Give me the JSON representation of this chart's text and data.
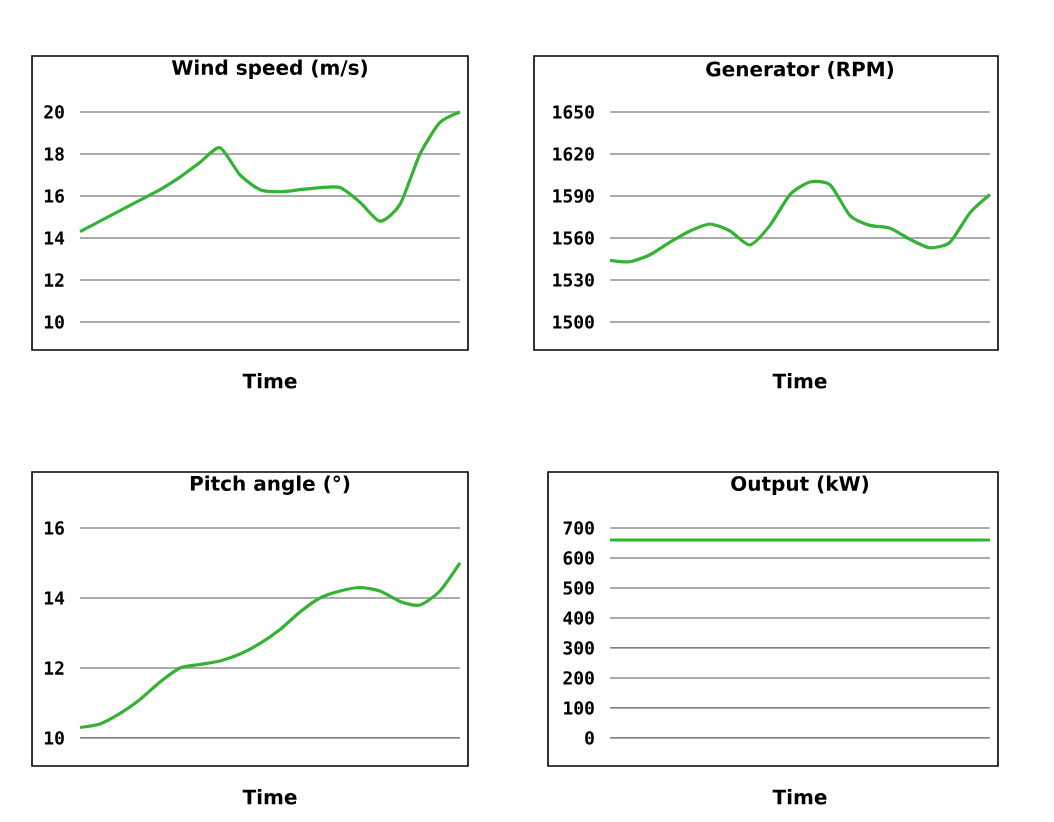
{
  "chart_data": [
    {
      "type": "line",
      "title": "Wind speed (m/s)",
      "xlabel": "Time",
      "categories": [
        null,
        null,
        null,
        null,
        null,
        null,
        null,
        null,
        null,
        null,
        null,
        null,
        null,
        null,
        null,
        null,
        null,
        null,
        null,
        null
      ],
      "values": [
        14.3,
        14.8,
        15.3,
        15.8,
        16.3,
        16.9,
        17.6,
        18.3,
        17.0,
        16.3,
        16.2,
        16.3,
        16.4,
        16.4,
        15.7,
        14.8,
        15.6,
        18.0,
        19.5,
        20.0
      ],
      "color": "#33b233",
      "ylim": [
        10,
        20
      ],
      "yticks": [
        10,
        12,
        14,
        16,
        18,
        20
      ],
      "grid": "y"
    },
    {
      "type": "line",
      "title": "Generator (RPM)",
      "xlabel": "Time",
      "categories": [
        null,
        null,
        null,
        null,
        null,
        null,
        null,
        null,
        null,
        null,
        null,
        null,
        null,
        null,
        null,
        null,
        null,
        null,
        null,
        null
      ],
      "values": [
        1544,
        1543,
        1548,
        1557,
        1565,
        1570,
        1565,
        1555,
        1569,
        1591,
        1600,
        1598,
        1576,
        1569,
        1567,
        1559,
        1553,
        1557,
        1578,
        1591
      ],
      "color": "#33b233",
      "ylim": [
        1500,
        1650
      ],
      "yticks": [
        1500,
        1530,
        1560,
        1590,
        1620,
        1650
      ],
      "grid": "y"
    },
    {
      "type": "line",
      "title": "Pitch angle (°)",
      "xlabel": "Time",
      "categories": [
        null,
        null,
        null,
        null,
        null,
        null,
        null,
        null,
        null,
        null,
        null,
        null,
        null,
        null,
        null,
        null,
        null,
        null,
        null,
        null
      ],
      "values": [
        10.3,
        10.4,
        10.7,
        11.1,
        11.6,
        12.0,
        12.1,
        12.2,
        12.4,
        12.7,
        13.1,
        13.6,
        14.0,
        14.2,
        14.3,
        14.2,
        13.9,
        13.8,
        14.2,
        15.0
      ],
      "color": "#33b233",
      "ylim": [
        10,
        16
      ],
      "yticks": [
        10,
        12,
        14,
        16
      ],
      "grid": "y"
    },
    {
      "type": "line",
      "title": "Output (kW)",
      "xlabel": "Time",
      "categories": [
        null,
        null,
        null,
        null,
        null,
        null,
        null,
        null,
        null,
        null
      ],
      "values": [
        660,
        660,
        660,
        660,
        660,
        660,
        660,
        660,
        660,
        660
      ],
      "color": "#33b233",
      "ylim": [
        0,
        700
      ],
      "yticks": [
        0,
        100,
        200,
        300,
        400,
        500,
        600,
        700
      ],
      "grid": "y"
    }
  ]
}
